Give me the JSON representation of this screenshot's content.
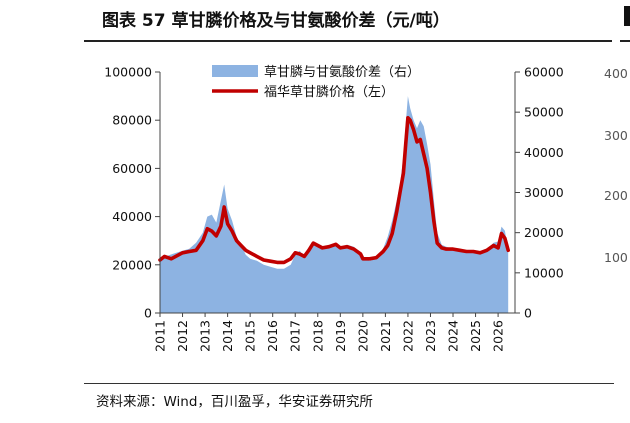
{
  "figure": {
    "title": "图表 57 草甘膦价格及与甘氨酸价差（元/吨）",
    "source": "资料来源：Wind，百川盈孚，华安证券研究所"
  },
  "chart_data": {
    "type": "line",
    "x_type": "year",
    "x_ticks": [
      "2011",
      "2012",
      "2013",
      "2014",
      "2015",
      "2016",
      "2017",
      "2018",
      "2019",
      "2020",
      "2021",
      "2022",
      "2023",
      "2024",
      "2025",
      "2026"
    ],
    "xlim": [
      2011.0,
      2026.75
    ],
    "y_left": {
      "ylim": [
        0,
        100000
      ],
      "ticks": [
        "0",
        "20000",
        "40000",
        "60000",
        "80000",
        "100000"
      ]
    },
    "y_right": {
      "ylim": [
        0,
        60000
      ],
      "ticks": [
        "0",
        "10000",
        "20000",
        "30000",
        "40000",
        "50000",
        "60000"
      ]
    },
    "legend_position": "top-center",
    "grid": false,
    "series": [
      {
        "name": "草甘膦与甘氨酸价差（右）",
        "kind": "area",
        "axis": "right",
        "color": "#8db3e2",
        "points": [
          [
            2011.0,
            13500
          ],
          [
            2011.3,
            14200
          ],
          [
            2011.6,
            14800
          ],
          [
            2012.0,
            15500
          ],
          [
            2012.3,
            16000
          ],
          [
            2012.6,
            17500
          ],
          [
            2012.9,
            20000
          ],
          [
            2013.1,
            24000
          ],
          [
            2013.3,
            24500
          ],
          [
            2013.5,
            22500
          ],
          [
            2013.7,
            28000
          ],
          [
            2013.85,
            32000
          ],
          [
            2014.0,
            26000
          ],
          [
            2014.2,
            23000
          ],
          [
            2014.4,
            19000
          ],
          [
            2014.6,
            17000
          ],
          [
            2014.8,
            14500
          ],
          [
            2015.0,
            13500
          ],
          [
            2015.3,
            13000
          ],
          [
            2015.6,
            12000
          ],
          [
            2015.9,
            11500
          ],
          [
            2016.2,
            11000
          ],
          [
            2016.5,
            11000
          ],
          [
            2016.8,
            12000
          ],
          [
            2017.0,
            14500
          ],
          [
            2017.2,
            15500
          ],
          [
            2017.4,
            14000
          ],
          [
            2017.6,
            15500
          ],
          [
            2017.8,
            17500
          ],
          [
            2018.0,
            17000
          ],
          [
            2018.2,
            16000
          ],
          [
            2018.5,
            16500
          ],
          [
            2018.8,
            17000
          ],
          [
            2019.0,
            16500
          ],
          [
            2019.3,
            17000
          ],
          [
            2019.6,
            16500
          ],
          [
            2019.9,
            15000
          ],
          [
            2020.0,
            13500
          ],
          [
            2020.3,
            13000
          ],
          [
            2020.6,
            13500
          ],
          [
            2020.9,
            16000
          ],
          [
            2021.1,
            19000
          ],
          [
            2021.3,
            23000
          ],
          [
            2021.5,
            28000
          ],
          [
            2021.65,
            32000
          ],
          [
            2021.8,
            39000
          ],
          [
            2021.9,
            47000
          ],
          [
            2022.0,
            54000
          ],
          [
            2022.1,
            51000
          ],
          [
            2022.25,
            48000
          ],
          [
            2022.4,
            46000
          ],
          [
            2022.55,
            48000
          ],
          [
            2022.7,
            46500
          ],
          [
            2022.85,
            42000
          ],
          [
            2023.0,
            37000
          ],
          [
            2023.15,
            28000
          ],
          [
            2023.3,
            20000
          ],
          [
            2023.5,
            17000
          ],
          [
            2023.7,
            16500
          ],
          [
            2024.0,
            16000
          ],
          [
            2024.3,
            15500
          ],
          [
            2024.6,
            15200
          ],
          [
            2024.9,
            15500
          ],
          [
            2025.2,
            15000
          ],
          [
            2025.5,
            15800
          ],
          [
            2025.8,
            17500
          ],
          [
            2026.0,
            17800
          ],
          [
            2026.15,
            21500
          ],
          [
            2026.3,
            20500
          ],
          [
            2026.45,
            15500
          ]
        ]
      },
      {
        "name": "福华草甘膦价格（左）",
        "kind": "line",
        "axis": "left",
        "color": "#c00000",
        "points": [
          [
            2011.0,
            22000
          ],
          [
            2011.2,
            23500
          ],
          [
            2011.5,
            22500
          ],
          [
            2011.8,
            24000
          ],
          [
            2012.0,
            25000
          ],
          [
            2012.3,
            25500
          ],
          [
            2012.6,
            26000
          ],
          [
            2012.9,
            30000
          ],
          [
            2013.1,
            35000
          ],
          [
            2013.3,
            34000
          ],
          [
            2013.5,
            32000
          ],
          [
            2013.7,
            36000
          ],
          [
            2013.85,
            44000
          ],
          [
            2014.0,
            37000
          ],
          [
            2014.2,
            34000
          ],
          [
            2014.4,
            30000
          ],
          [
            2014.6,
            28000
          ],
          [
            2014.8,
            26000
          ],
          [
            2015.0,
            25000
          ],
          [
            2015.3,
            23500
          ],
          [
            2015.6,
            22000
          ],
          [
            2015.9,
            21500
          ],
          [
            2016.2,
            21000
          ],
          [
            2016.5,
            21000
          ],
          [
            2016.8,
            22500
          ],
          [
            2017.0,
            25000
          ],
          [
            2017.2,
            24500
          ],
          [
            2017.4,
            23500
          ],
          [
            2017.6,
            26000
          ],
          [
            2017.8,
            29000
          ],
          [
            2018.0,
            28000
          ],
          [
            2018.2,
            27000
          ],
          [
            2018.5,
            27500
          ],
          [
            2018.8,
            28500
          ],
          [
            2019.0,
            27000
          ],
          [
            2019.3,
            27500
          ],
          [
            2019.6,
            26500
          ],
          [
            2019.9,
            24500
          ],
          [
            2020.0,
            22500
          ],
          [
            2020.3,
            22500
          ],
          [
            2020.6,
            23000
          ],
          [
            2020.9,
            25500
          ],
          [
            2021.1,
            28000
          ],
          [
            2021.3,
            33000
          ],
          [
            2021.5,
            42000
          ],
          [
            2021.65,
            50000
          ],
          [
            2021.8,
            58000
          ],
          [
            2021.9,
            70000
          ],
          [
            2022.0,
            81000
          ],
          [
            2022.1,
            80000
          ],
          [
            2022.25,
            76000
          ],
          [
            2022.4,
            71000
          ],
          [
            2022.55,
            72000
          ],
          [
            2022.7,
            66000
          ],
          [
            2022.85,
            60000
          ],
          [
            2023.0,
            50000
          ],
          [
            2023.15,
            38000
          ],
          [
            2023.3,
            29000
          ],
          [
            2023.5,
            27000
          ],
          [
            2023.7,
            26500
          ],
          [
            2024.0,
            26500
          ],
          [
            2024.3,
            26000
          ],
          [
            2024.6,
            25500
          ],
          [
            2024.9,
            25500
          ],
          [
            2025.2,
            25000
          ],
          [
            2025.5,
            26000
          ],
          [
            2025.8,
            28000
          ],
          [
            2026.0,
            27000
          ],
          [
            2026.15,
            33000
          ],
          [
            2026.3,
            31000
          ],
          [
            2026.45,
            26000
          ]
        ]
      }
    ]
  },
  "neighbor_panel": {
    "tick_labels": [
      "400",
      "300",
      "200",
      "100"
    ]
  }
}
